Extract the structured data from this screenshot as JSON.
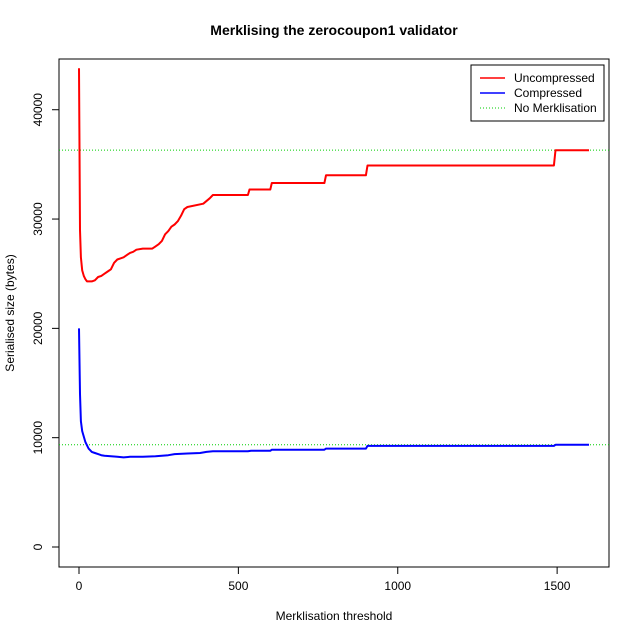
{
  "chart_data": {
    "type": "line",
    "title": "Merklising the zerocoupon1 validator",
    "xlabel": "Merklisation threshold",
    "ylabel": "Serialised size (bytes)",
    "xlim": [
      0,
      1600
    ],
    "ylim": [
      0,
      44000
    ],
    "x_ticks": [
      0,
      500,
      1000,
      1500
    ],
    "y_ticks": [
      0,
      10000,
      20000,
      30000,
      40000
    ],
    "x_tick_labels": [
      "0",
      "500",
      "1000",
      "1500"
    ],
    "y_tick_labels": [
      "0",
      "10000",
      "20000",
      "30000",
      "40000"
    ],
    "grid": false,
    "legend_position": "top-right",
    "series": [
      {
        "name": "Uncompressed",
        "color": "#ff0000",
        "style": "solid",
        "points": [
          [
            0,
            43800
          ],
          [
            3,
            29000
          ],
          [
            6,
            26500
          ],
          [
            10,
            25300
          ],
          [
            15,
            24800
          ],
          [
            20,
            24500
          ],
          [
            25,
            24300
          ],
          [
            40,
            24300
          ],
          [
            50,
            24400
          ],
          [
            60,
            24700
          ],
          [
            70,
            24800
          ],
          [
            80,
            25000
          ],
          [
            90,
            25200
          ],
          [
            100,
            25400
          ],
          [
            110,
            26000
          ],
          [
            120,
            26300
          ],
          [
            130,
            26400
          ],
          [
            140,
            26500
          ],
          [
            150,
            26700
          ],
          [
            160,
            26900
          ],
          [
            170,
            27000
          ],
          [
            180,
            27200
          ],
          [
            200,
            27300
          ],
          [
            230,
            27300
          ],
          [
            240,
            27500
          ],
          [
            250,
            27700
          ],
          [
            260,
            28000
          ],
          [
            270,
            28600
          ],
          [
            280,
            28900
          ],
          [
            290,
            29300
          ],
          [
            300,
            29500
          ],
          [
            310,
            29800
          ],
          [
            320,
            30300
          ],
          [
            330,
            30900
          ],
          [
            340,
            31100
          ],
          [
            390,
            31400
          ],
          [
            410,
            31900
          ],
          [
            420,
            32200
          ],
          [
            530,
            32200
          ],
          [
            535,
            32700
          ],
          [
            600,
            32700
          ],
          [
            605,
            33300
          ],
          [
            770,
            33300
          ],
          [
            775,
            34000
          ],
          [
            900,
            34000
          ],
          [
            905,
            34900
          ],
          [
            1490,
            34900
          ],
          [
            1495,
            36300
          ],
          [
            1600,
            36300
          ]
        ]
      },
      {
        "name": "Compressed",
        "color": "#0000ff",
        "style": "solid",
        "points": [
          [
            0,
            20000
          ],
          [
            3,
            14000
          ],
          [
            6,
            11500
          ],
          [
            10,
            10600
          ],
          [
            15,
            10100
          ],
          [
            20,
            9600
          ],
          [
            30,
            9000
          ],
          [
            40,
            8700
          ],
          [
            50,
            8600
          ],
          [
            60,
            8500
          ],
          [
            70,
            8400
          ],
          [
            80,
            8350
          ],
          [
            100,
            8300
          ],
          [
            120,
            8250
          ],
          [
            140,
            8200
          ],
          [
            160,
            8250
          ],
          [
            200,
            8250
          ],
          [
            240,
            8300
          ],
          [
            260,
            8350
          ],
          [
            280,
            8400
          ],
          [
            300,
            8500
          ],
          [
            340,
            8550
          ],
          [
            380,
            8600
          ],
          [
            400,
            8700
          ],
          [
            420,
            8750
          ],
          [
            530,
            8750
          ],
          [
            540,
            8800
          ],
          [
            600,
            8800
          ],
          [
            605,
            8900
          ],
          [
            770,
            8900
          ],
          [
            775,
            9000
          ],
          [
            900,
            9000
          ],
          [
            905,
            9250
          ],
          [
            1490,
            9250
          ],
          [
            1495,
            9350
          ],
          [
            1600,
            9350
          ]
        ]
      },
      {
        "name": "No Merklisation",
        "style": "dotted",
        "color": "#00cd00",
        "horizontal_lines": [
          36300,
          9350
        ]
      }
    ]
  }
}
